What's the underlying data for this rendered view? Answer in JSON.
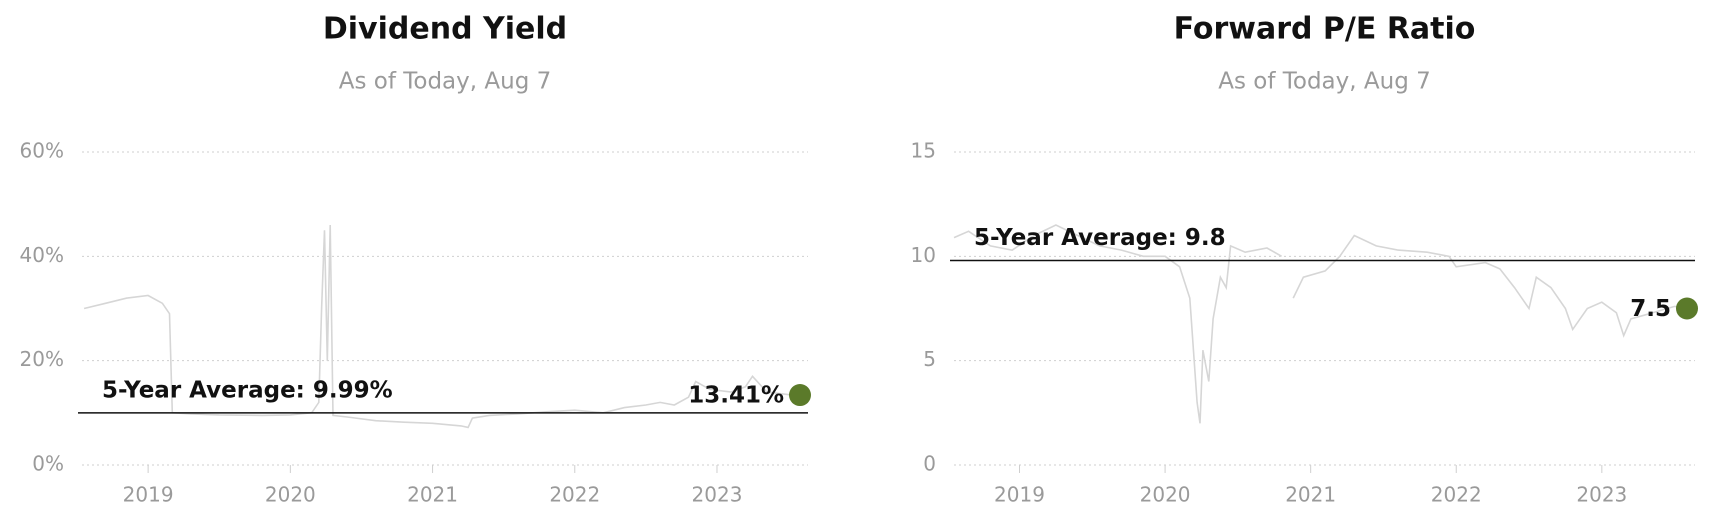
{
  "chart_data": [
    {
      "type": "line",
      "title": "Dividend Yield",
      "subtitle": "As of Today, Aug 7",
      "color": "#d6d6d6",
      "x": [
        2018.55,
        2018.7,
        2018.85,
        2019.0,
        2019.1,
        2019.15,
        2019.17,
        2019.3,
        2019.5,
        2019.8,
        2020.0,
        2020.15,
        2020.2,
        2020.22,
        2020.24,
        2020.26,
        2020.28,
        2020.3,
        2020.4,
        2020.6,
        2020.8,
        2021.0,
        2021.2,
        2021.25,
        2021.28,
        2021.4,
        2021.6,
        2021.8,
        2022.0,
        2022.2,
        2022.35,
        2022.5,
        2022.6,
        2022.7,
        2022.8,
        2022.85,
        2022.95,
        2023.1,
        2023.2,
        2023.25,
        2023.35,
        2023.5,
        2023.6
      ],
      "values": [
        30,
        31,
        32,
        32.5,
        31,
        29,
        10,
        9.8,
        9.6,
        9.5,
        9.6,
        10,
        12,
        30,
        45,
        20,
        46,
        9.5,
        9.2,
        8.5,
        8.2,
        8,
        7.5,
        7.2,
        9,
        9.5,
        9.8,
        10.2,
        10.5,
        10,
        11,
        11.5,
        12,
        11.5,
        13,
        16,
        14.5,
        14,
        15,
        17,
        14,
        13.5,
        13.41
      ],
      "xlim": [
        2018.535,
        2023.64
      ],
      "xticks": [
        2019,
        2020,
        2021,
        2022,
        2023
      ],
      "ylim": [
        0,
        60
      ],
      "yticks": [
        {
          "value": 0,
          "label": "0%"
        },
        {
          "value": 20,
          "label": "20%"
        },
        {
          "value": 40,
          "label": "40%"
        },
        {
          "value": 60,
          "label": "60%"
        }
      ],
      "grid": true,
      "average": 9.99,
      "average_label": "5-Year Average: 9.99%",
      "current": {
        "value": 13.41,
        "label": "13.41%"
      },
      "dot_color": "#5b7a2a"
    },
    {
      "type": "line",
      "title": "Forward P/E Ratio",
      "subtitle": "As of Today, Aug 7",
      "color": "#d6d6d6",
      "x": [
        2018.55,
        2018.65,
        2018.8,
        2018.95,
        2019.1,
        2019.25,
        2019.4,
        2019.55,
        2019.7,
        2019.85,
        2020.0,
        2020.1,
        2020.17,
        2020.22,
        2020.24,
        2020.26,
        2020.3,
        2020.33,
        2020.38,
        2020.42,
        2020.45,
        2020.55,
        2020.7,
        2020.8,
        2020.85,
        2020.88,
        2020.95,
        2021.1,
        2021.2,
        2021.3,
        2021.45,
        2021.6,
        2021.8,
        2021.95,
        2022.0,
        2022.2,
        2022.3,
        2022.4,
        2022.5,
        2022.55,
        2022.65,
        2022.75,
        2022.8,
        2022.9,
        2023.0,
        2023.1,
        2023.15,
        2023.2,
        2023.3,
        2023.5,
        2023.6
      ],
      "values": [
        10.9,
        11.2,
        10.5,
        10.3,
        11,
        11.5,
        11,
        10.5,
        10.3,
        10,
        10,
        9.5,
        8,
        3,
        2,
        5.5,
        4,
        7,
        9,
        8.5,
        10.5,
        10.2,
        10.4,
        10,
        null,
        8,
        9,
        9.3,
        10,
        11,
        10.5,
        10.3,
        10.2,
        10,
        9.5,
        9.7,
        9.4,
        8.5,
        7.5,
        9,
        8.5,
        7.5,
        6.5,
        7.5,
        7.8,
        7.3,
        6.2,
        7,
        7.2,
        7.6,
        7.5
      ],
      "xlim": [
        2018.55,
        2023.64
      ],
      "xticks": [
        2019,
        2020,
        2021,
        2022,
        2023
      ],
      "ylim": [
        0,
        15
      ],
      "yticks": [
        0,
        5,
        10,
        15
      ],
      "grid": true,
      "average": 9.8,
      "average_label": "5-Year Average: 9.8",
      "current": 7.5,
      "dot_color": "#5b7a2a"
    }
  ]
}
